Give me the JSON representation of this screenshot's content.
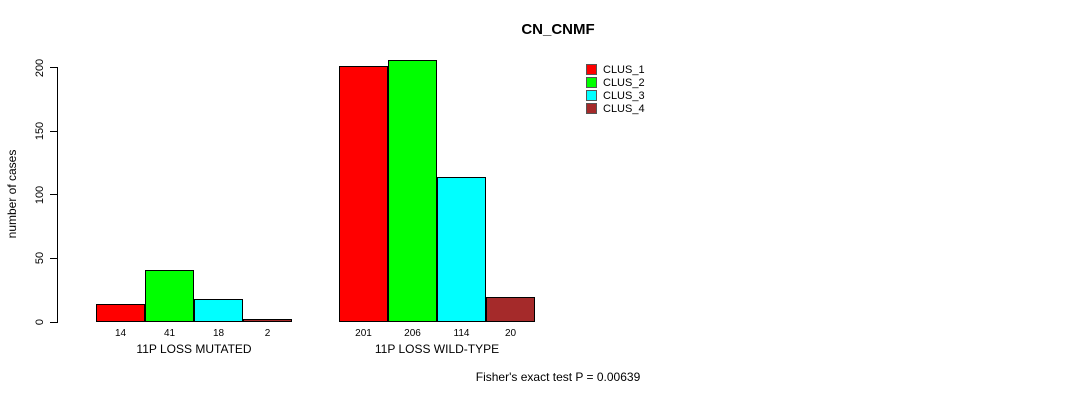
{
  "chart_data": {
    "type": "bar",
    "title": "CN_CNMF",
    "ylabel": "number of cases",
    "xlabel": "",
    "ylim": [
      0,
      200
    ],
    "yticks": [
      0,
      50,
      100,
      150,
      200
    ],
    "grid": false,
    "legend_position": "top-right",
    "categories": [
      "11P LOSS MUTATED",
      "11P LOSS WILD-TYPE"
    ],
    "series": [
      {
        "name": "CLUS_1",
        "color": "#ff0000",
        "values": [
          14,
          201
        ]
      },
      {
        "name": "CLUS_2",
        "color": "#00ff00",
        "values": [
          41,
          206
        ]
      },
      {
        "name": "CLUS_3",
        "color": "#00ffff",
        "values": [
          18,
          114
        ]
      },
      {
        "name": "CLUS_4",
        "color": "#a52a2a",
        "values": [
          2,
          20
        ]
      }
    ],
    "bar_value_labels": [
      [
        "14",
        "41",
        "18",
        "2"
      ],
      [
        "201",
        "206",
        "114",
        "20"
      ]
    ],
    "annotation": "Fisher's exact test P = 0.00639"
  },
  "colors": {
    "background": "#ffffff",
    "axis": "#000000",
    "text": "#000000"
  }
}
